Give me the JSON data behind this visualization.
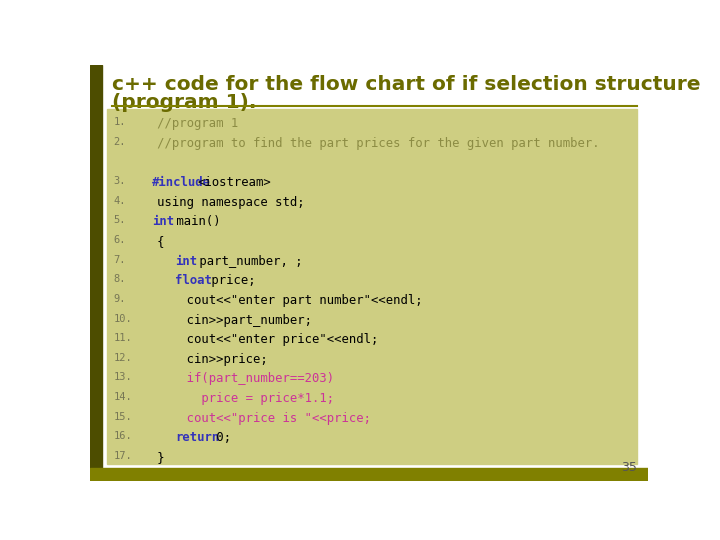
{
  "title_line1": "c++ code for the flow chart of if selection structure",
  "title_line2": "(program 1).",
  "title_color": "#6b6b00",
  "title_fontsize": 14.5,
  "bg_color": "#ffffff",
  "left_bar_color": "#4d4d00",
  "code_bg_color": "#cece82",
  "bottom_bar_color": "#808000",
  "separator_color": "#808000",
  "page_number": "35",
  "code_lines": [
    {
      "num": "1.",
      "parts": [
        {
          "t": "   //program 1",
          "c": "#8c8c44",
          "b": false
        }
      ]
    },
    {
      "num": "2.",
      "parts": [
        {
          "t": "   //program to find the part prices for the given part number.",
          "c": "#8c8c44",
          "b": false
        }
      ]
    },
    {
      "num": "",
      "parts": []
    },
    {
      "num": "3.",
      "parts": [
        {
          "t": "   ",
          "c": "#000000",
          "b": false
        },
        {
          "t": "#include",
          "c": "#3333bb",
          "b": true
        },
        {
          "t": "<iostream>",
          "c": "#000000",
          "b": false
        }
      ]
    },
    {
      "num": "4.",
      "parts": [
        {
          "t": "   using namespace std;",
          "c": "#000000",
          "b": false
        }
      ]
    },
    {
      "num": "5.",
      "parts": [
        {
          "t": "   ",
          "c": "#000000",
          "b": false
        },
        {
          "t": "int",
          "c": "#3333bb",
          "b": true
        },
        {
          "t": " main()",
          "c": "#000000",
          "b": false
        }
      ]
    },
    {
      "num": "6.",
      "parts": [
        {
          "t": "   {",
          "c": "#000000",
          "b": false
        }
      ]
    },
    {
      "num": "7.",
      "parts": [
        {
          "t": "       ",
          "c": "#000000",
          "b": false
        },
        {
          "t": "int",
          "c": "#3333bb",
          "b": true
        },
        {
          "t": " part_number, ;",
          "c": "#000000",
          "b": false
        }
      ]
    },
    {
      "num": "8.",
      "parts": [
        {
          "t": "       ",
          "c": "#000000",
          "b": false
        },
        {
          "t": "float",
          "c": "#3333bb",
          "b": true
        },
        {
          "t": " price;",
          "c": "#000000",
          "b": false
        }
      ]
    },
    {
      "num": "9.",
      "parts": [
        {
          "t": "       cout<<\"enter part number\"<<endl;",
          "c": "#000000",
          "b": false
        }
      ]
    },
    {
      "num": "10.",
      "parts": [
        {
          "t": "       cin>>part_number;",
          "c": "#000000",
          "b": false
        }
      ]
    },
    {
      "num": "11.",
      "parts": [
        {
          "t": "       cout<<\"enter price\"<<endl;",
          "c": "#000000",
          "b": false
        }
      ]
    },
    {
      "num": "12.",
      "parts": [
        {
          "t": "       cin>>price;",
          "c": "#000000",
          "b": false
        }
      ]
    },
    {
      "num": "13.",
      "parts": [
        {
          "t": "       if(part_number==203)",
          "c": "#cc3399",
          "b": false
        }
      ]
    },
    {
      "num": "14.",
      "parts": [
        {
          "t": "         price = price*1.1;",
          "c": "#cc3399",
          "b": false
        }
      ]
    },
    {
      "num": "15.",
      "parts": [
        {
          "t": "       cout<<\"price is \"<<price;",
          "c": "#cc3399",
          "b": false
        }
      ]
    },
    {
      "num": "16.",
      "parts": [
        {
          "t": "       ",
          "c": "#000000",
          "b": false
        },
        {
          "t": "return",
          "c": "#3333bb",
          "b": true
        },
        {
          "t": " 0;",
          "c": "#000000",
          "b": false
        }
      ]
    },
    {
      "num": "17.",
      "parts": [
        {
          "t": "   }",
          "c": "#000000",
          "b": false
        }
      ]
    }
  ]
}
